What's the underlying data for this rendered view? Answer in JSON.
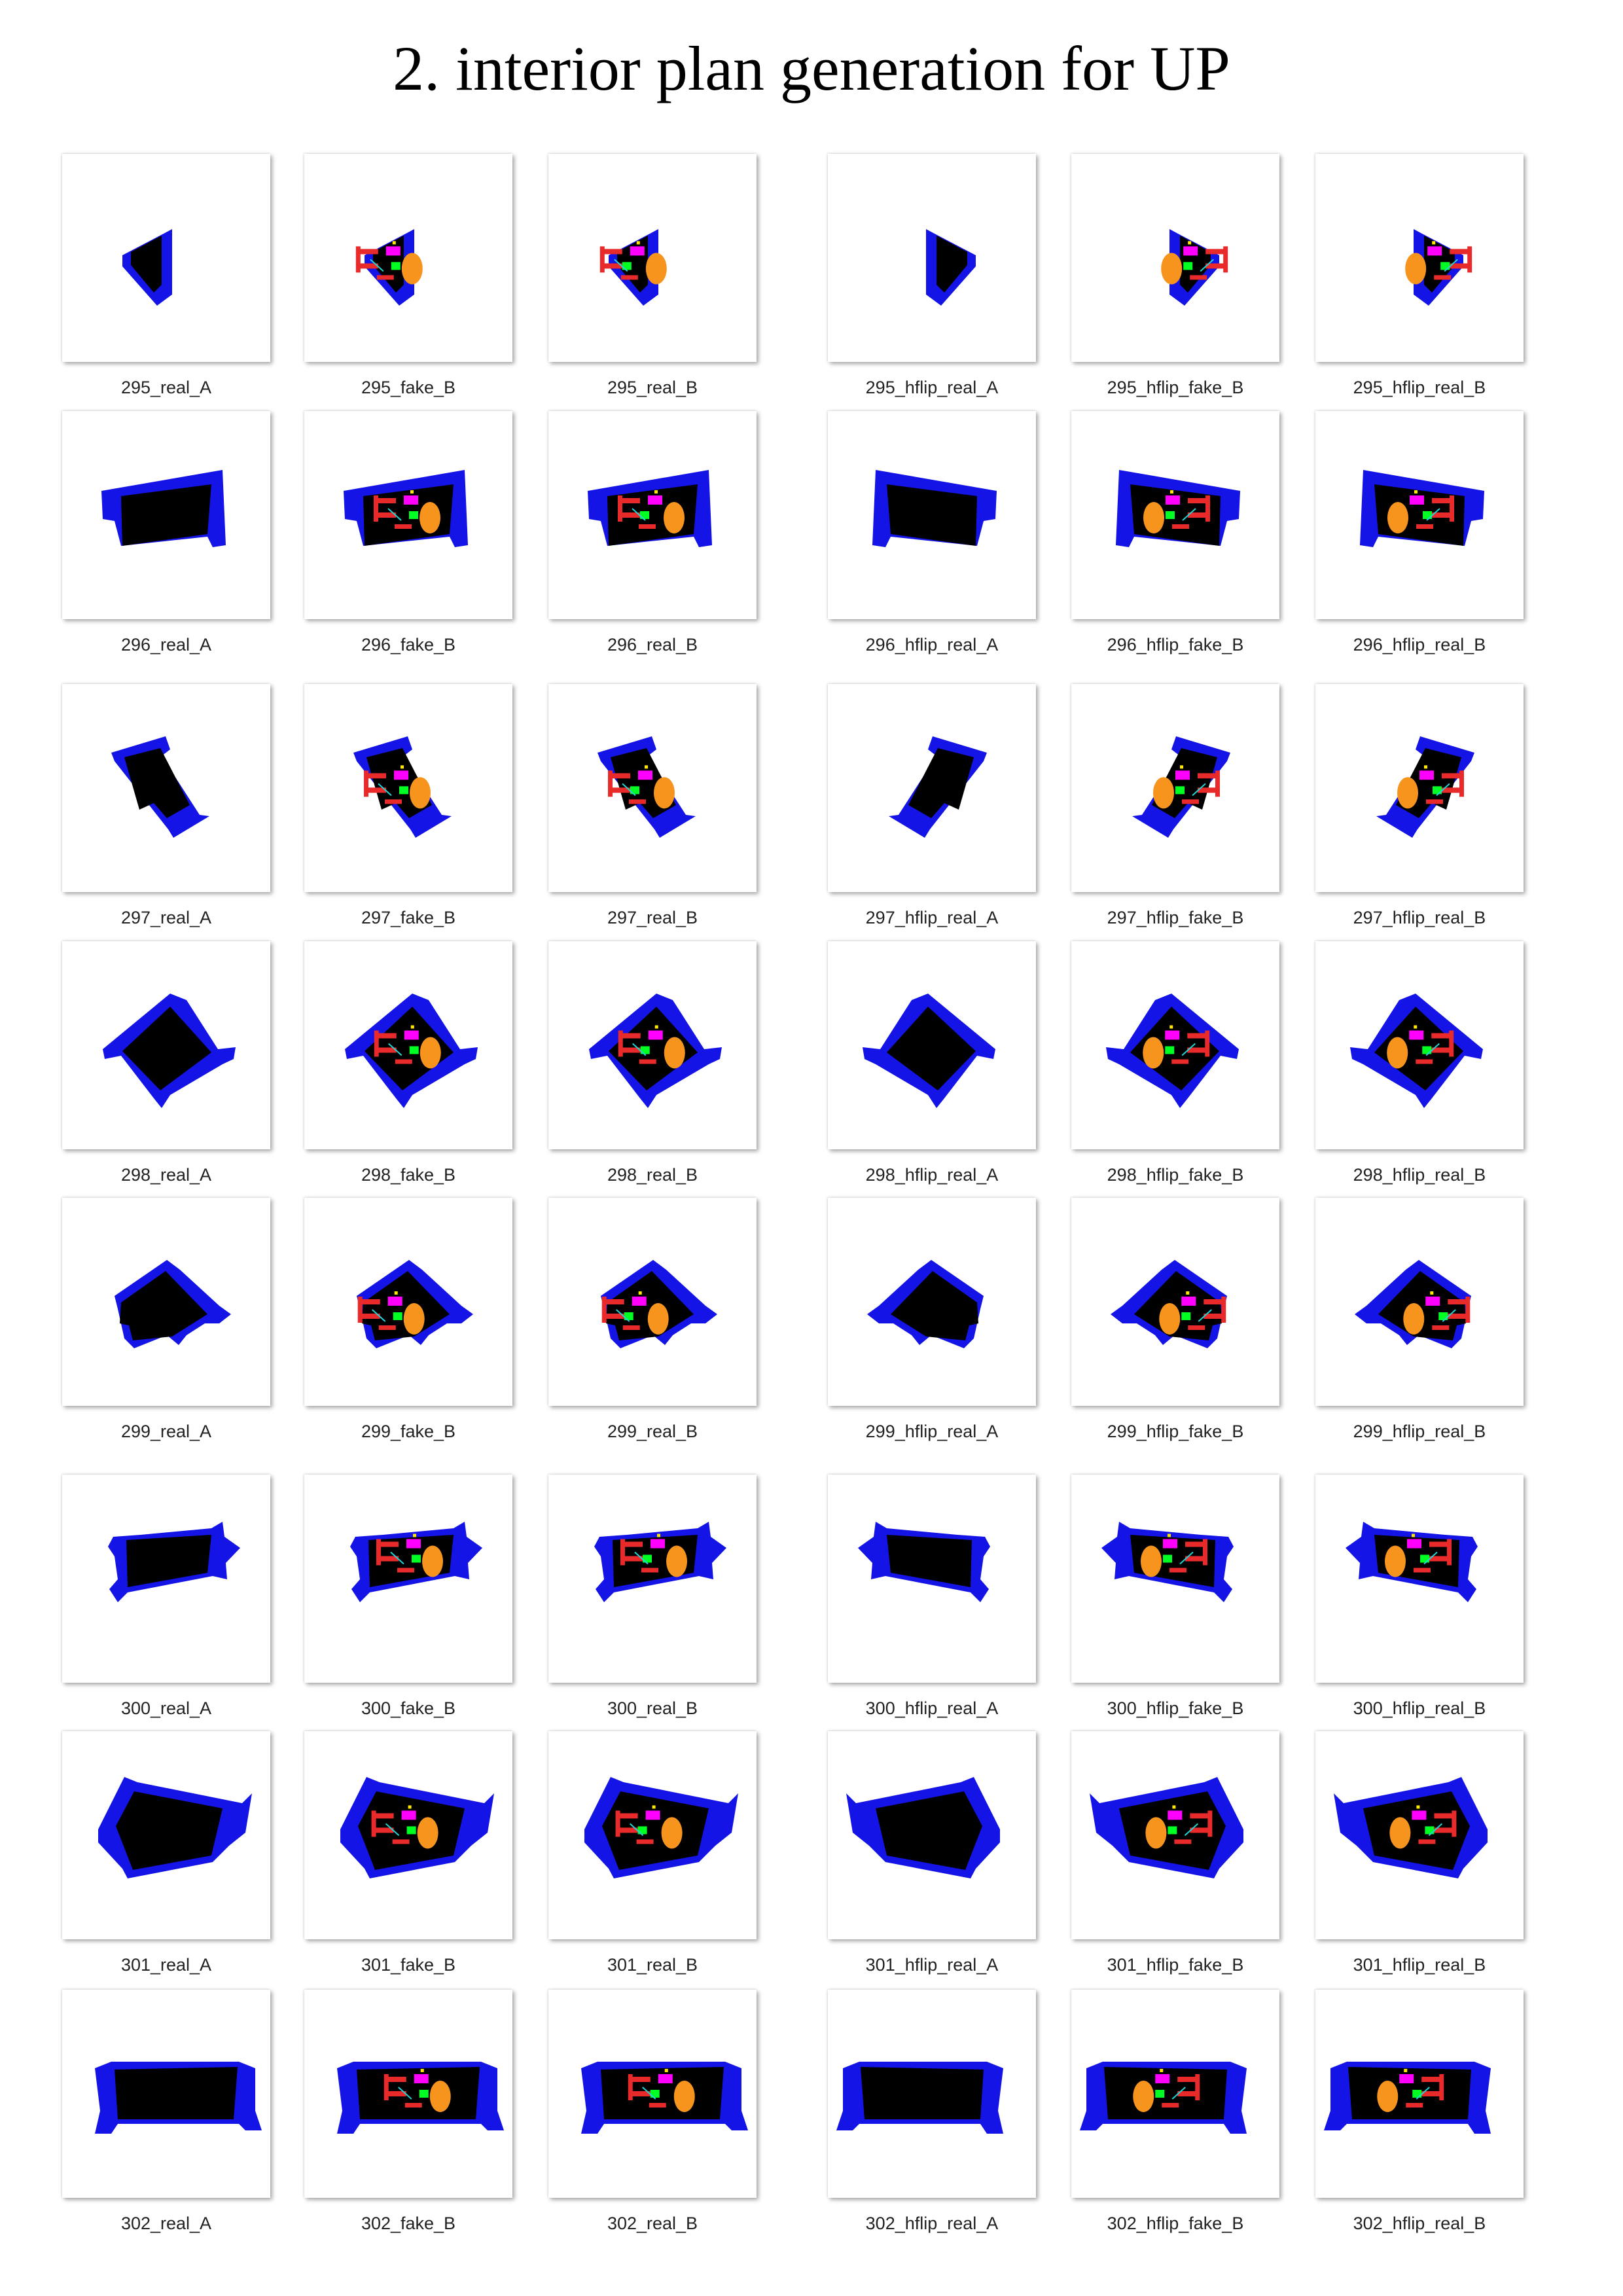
{
  "title": "2. interior plan generation for UP",
  "colors": {
    "wall": "#1414e6",
    "footprint": "#000000",
    "living": "#f7941d",
    "bedroom": "#ff00ff",
    "kitchen": "#00ff22",
    "bathroom": "#e82a2a",
    "aux": "#22d6d6",
    "door": "#ffe600",
    "void": "#ffffff"
  },
  "columns": [
    "real_A",
    "fake_B",
    "real_B",
    "hflip_real_A",
    "hflip_fake_B",
    "hflip_real_B"
  ],
  "rows": [
    {
      "id": "295",
      "captions": [
        "295_real_A",
        "295_fake_B",
        "295_real_B",
        "295_hflip_real_A",
        "295_hflip_fake_B",
        "295_hflip_real_B"
      ]
    },
    {
      "id": "296",
      "captions": [
        "296_real_A",
        "296_fake_B",
        "296_real_B",
        "296_hflip_real_A",
        "296_hflip_fake_B",
        "296_hflip_real_B"
      ]
    },
    {
      "id": "297",
      "captions": [
        "297_real_A",
        "297_fake_B",
        "297_real_B",
        "297_hflip_real_A",
        "297_hflip_fake_B",
        "297_hflip_real_B"
      ]
    },
    {
      "id": "298",
      "captions": [
        "298_real_A",
        "298_fake_B",
        "298_real_B",
        "298_hflip_real_A",
        "298_hflip_fake_B",
        "298_hflip_real_B"
      ]
    },
    {
      "id": "299",
      "captions": [
        "299_real_A",
        "299_fake_B",
        "299_real_B",
        "299_hflip_real_A",
        "299_hflip_fake_B",
        "299_hflip_real_B"
      ]
    },
    {
      "id": "300",
      "captions": [
        "300_real_A",
        "300_fake_B",
        "300_real_B",
        "300_hflip_real_A",
        "300_hflip_fake_B",
        "300_hflip_real_B"
      ]
    },
    {
      "id": "301",
      "captions": [
        "301_real_A",
        "301_fake_B",
        "301_real_B",
        "301_hflip_real_A",
        "301_hflip_fake_B",
        "301_hflip_real_B"
      ]
    },
    {
      "id": "302",
      "captions": [
        "302_real_A",
        "302_fake_B",
        "302_real_B",
        "302_hflip_real_A",
        "302_hflip_fake_B",
        "302_hflip_real_B"
      ]
    }
  ]
}
